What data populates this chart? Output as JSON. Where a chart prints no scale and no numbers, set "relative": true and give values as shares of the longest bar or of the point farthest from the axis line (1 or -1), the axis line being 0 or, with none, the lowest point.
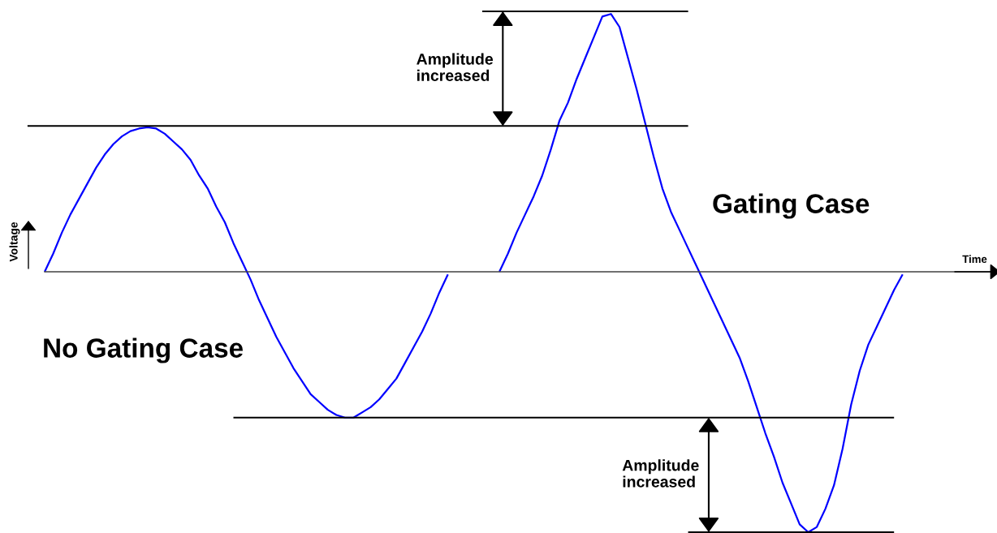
{
  "chart_data": {
    "type": "line",
    "relative": true,
    "ylabel": "Voltage",
    "categories": [
      null,
      null,
      null,
      null,
      null,
      null,
      null,
      null,
      null,
      null,
      null,
      null,
      null,
      null,
      null,
      null,
      null,
      null,
      null,
      null,
      null,
      null,
      null,
      null,
      null,
      null,
      null,
      null,
      null,
      null,
      null,
      null,
      null,
      null,
      null,
      null,
      null,
      null,
      null,
      null,
      null,
      null,
      null,
      null,
      null,
      null,
      null,
      null,
      null,
      null,
      null,
      null,
      null,
      null,
      null,
      null,
      null,
      null,
      null,
      null,
      null,
      null,
      null,
      null,
      null,
      null,
      null,
      null,
      null,
      null,
      null,
      null,
      null,
      null,
      null,
      null,
      null,
      null,
      null,
      null,
      null,
      null,
      null,
      null,
      null,
      null,
      null,
      null,
      null,
      null,
      null,
      null,
      null,
      null,
      null,
      null,
      null,
      null,
      null,
      null,
      null,
      null,
      null
    ],
    "series": [
      {
        "name": "No Gating Case",
        "color": "#0000ff",
        "values": [
          null,
          null,
          0,
          0.07,
          0.15,
          0.22,
          0.28,
          0.34,
          0.4,
          0.45,
          0.49,
          0.52,
          0.54,
          0.55,
          0.555,
          0.55,
          0.53,
          0.5,
          0.47,
          0.43,
          0.37,
          0.32,
          0.25,
          0.19,
          0.11,
          0.04,
          -0.03,
          -0.11,
          -0.18,
          -0.25,
          -0.31,
          -0.37,
          -0.42,
          -0.47,
          -0.5,
          -0.53,
          -0.55,
          -0.56,
          -0.56,
          -0.54,
          -0.52,
          -0.49,
          -0.45,
          -0.41,
          -0.35,
          -0.29,
          -0.23,
          -0.16,
          -0.08,
          -0.01,
          null,
          null,
          null,
          null,
          null,
          null,
          null,
          null,
          null,
          null,
          null,
          null,
          null,
          null,
          null,
          null,
          null,
          null,
          null,
          null,
          null,
          null,
          null,
          null,
          null,
          null,
          null,
          null,
          null,
          null,
          null,
          null,
          null,
          null,
          null,
          null,
          null,
          null,
          null,
          null,
          null,
          null,
          null,
          null,
          null,
          null,
          null,
          null,
          null,
          null,
          null,
          null,
          null
        ]
      },
      {
        "name": "Gating Case",
        "color": "#0000ff",
        "values": [
          null,
          null,
          null,
          null,
          null,
          null,
          null,
          null,
          null,
          null,
          null,
          null,
          null,
          null,
          null,
          null,
          null,
          null,
          null,
          null,
          null,
          null,
          null,
          null,
          null,
          null,
          null,
          null,
          null,
          null,
          null,
          null,
          null,
          null,
          null,
          null,
          null,
          null,
          null,
          null,
          null,
          null,
          null,
          null,
          null,
          null,
          null,
          null,
          null,
          null,
          null,
          null,
          null,
          null,
          null,
          0,
          0.07,
          0.15,
          0.22,
          0.29,
          0.37,
          0.47,
          0.58,
          0.65,
          0.74,
          0.82,
          0.9,
          0.98,
          0.99,
          0.94,
          0.82,
          0.7,
          0.57,
          0.44,
          0.32,
          0.23,
          0.16,
          0.09,
          0.02,
          -0.05,
          -0.12,
          -0.19,
          -0.26,
          -0.33,
          -0.42,
          -0.52,
          -0.62,
          -0.71,
          -0.81,
          -0.89,
          -0.97,
          -1,
          -0.98,
          -0.91,
          -0.82,
          -0.68,
          -0.51,
          -0.38,
          -0.28,
          -0.21,
          -0.14,
          -0.07,
          -0.01
        ]
      },
      {
        "color": "#000000",
        "values": [
          0.56,
          0.56,
          0.56,
          0.56,
          0.56,
          0.56,
          0.56,
          0.56,
          0.56,
          0.56,
          0.56,
          0.56,
          0.56,
          0.56,
          0.56,
          0.56,
          0.56,
          0.56,
          0.56,
          0.56,
          0.56,
          0.56,
          0.56,
          0.56,
          0.56,
          0.56,
          0.56,
          0.56,
          0.56,
          0.56,
          0.56,
          0.56,
          0.56,
          0.56,
          0.56,
          0.56,
          0.56,
          0.56,
          0.56,
          0.56,
          0.56,
          0.56,
          0.56,
          0.56,
          0.56,
          0.56,
          0.56,
          0.56,
          0.56,
          0.56,
          0.56,
          0.56,
          0.56,
          0.56,
          0.56,
          0.56,
          0.56,
          0.56,
          0.56,
          0.56,
          0.56,
          0.56,
          0.56,
          0.56,
          0.56,
          0.56,
          0.56,
          0.56,
          0.56,
          0.56,
          0.56,
          0.56,
          0.56,
          0.56,
          0.56,
          0.56,
          0.56,
          0.56,
          null,
          null,
          null,
          null,
          null,
          null,
          null,
          null,
          null,
          null,
          null,
          null,
          null,
          null,
          null,
          null,
          null,
          null,
          null,
          null,
          null,
          null,
          null,
          null,
          null
        ]
      },
      {
        "color": "#000000",
        "values": [
          null,
          null,
          null,
          null,
          null,
          null,
          null,
          null,
          null,
          null,
          null,
          null,
          null,
          null,
          null,
          null,
          null,
          null,
          null,
          null,
          null,
          null,
          null,
          null,
          null,
          null,
          null,
          null,
          null,
          null,
          null,
          null,
          null,
          null,
          null,
          null,
          null,
          null,
          null,
          null,
          null,
          null,
          null,
          null,
          null,
          null,
          null,
          null,
          null,
          null,
          null,
          null,
          null,
          1,
          1,
          1,
          1,
          1,
          1,
          1,
          1,
          1,
          1,
          1,
          1,
          1,
          1,
          1,
          1,
          1,
          1,
          1,
          1,
          1,
          1,
          1,
          1,
          1,
          null,
          null,
          null,
          null,
          null,
          null,
          null,
          null,
          null,
          null,
          null,
          null,
          null,
          null,
          null,
          null,
          null,
          null,
          null,
          null,
          null,
          null,
          null,
          null,
          null
        ]
      },
      {
        "color": "#000000",
        "values": [
          null,
          null,
          null,
          null,
          null,
          null,
          null,
          null,
          null,
          null,
          null,
          null,
          null,
          null,
          null,
          null,
          null,
          null,
          null,
          null,
          null,
          null,
          null,
          null,
          -0.56,
          -0.56,
          -0.56,
          -0.56,
          -0.56,
          -0.56,
          -0.56,
          -0.56,
          -0.56,
          -0.56,
          -0.56,
          -0.56,
          -0.56,
          -0.56,
          -0.56,
          -0.56,
          -0.56,
          -0.56,
          -0.56,
          -0.56,
          -0.56,
          -0.56,
          -0.56,
          -0.56,
          -0.56,
          -0.56,
          -0.56,
          -0.56,
          -0.56,
          -0.56,
          -0.56,
          -0.56,
          -0.56,
          -0.56,
          -0.56,
          -0.56,
          -0.56,
          -0.56,
          -0.56,
          -0.56,
          -0.56,
          -0.56,
          -0.56,
          -0.56,
          -0.56,
          -0.56,
          -0.56,
          -0.56,
          -0.56,
          -0.56,
          -0.56,
          -0.56,
          -0.56,
          -0.56,
          -0.56,
          -0.56,
          -0.56,
          -0.56,
          -0.56,
          -0.56,
          -0.56,
          -0.56,
          -0.56,
          -0.56,
          -0.56,
          -0.56,
          -0.56,
          -0.56,
          -0.56,
          -0.56,
          -0.56,
          -0.56,
          -0.56,
          -0.56,
          -0.56,
          -0.56,
          -0.56,
          -0.56,
          null
        ]
      },
      {
        "color": "#000000",
        "values": [
          null,
          null,
          null,
          null,
          null,
          null,
          null,
          null,
          null,
          null,
          null,
          null,
          null,
          null,
          null,
          null,
          null,
          null,
          null,
          null,
          null,
          null,
          null,
          null,
          null,
          null,
          null,
          null,
          null,
          null,
          null,
          null,
          null,
          null,
          null,
          null,
          null,
          null,
          null,
          null,
          null,
          null,
          null,
          null,
          null,
          null,
          null,
          null,
          null,
          null,
          null,
          null,
          null,
          null,
          null,
          null,
          null,
          null,
          null,
          null,
          null,
          null,
          null,
          null,
          null,
          null,
          null,
          null,
          null,
          null,
          null,
          null,
          null,
          null,
          null,
          null,
          null,
          -1,
          -1,
          -1,
          -1,
          -1,
          -1,
          -1,
          -1,
          -1,
          -1,
          -1,
          -1,
          -1,
          -1,
          -1,
          -1,
          -1,
          -1,
          -1,
          -1,
          -1,
          -1,
          -1,
          -1,
          -1,
          null
        ]
      }
    ],
    "annotations": [
      "Amplitude\nincreased",
      "Amplitude\nincreased",
      "Time"
    ]
  }
}
